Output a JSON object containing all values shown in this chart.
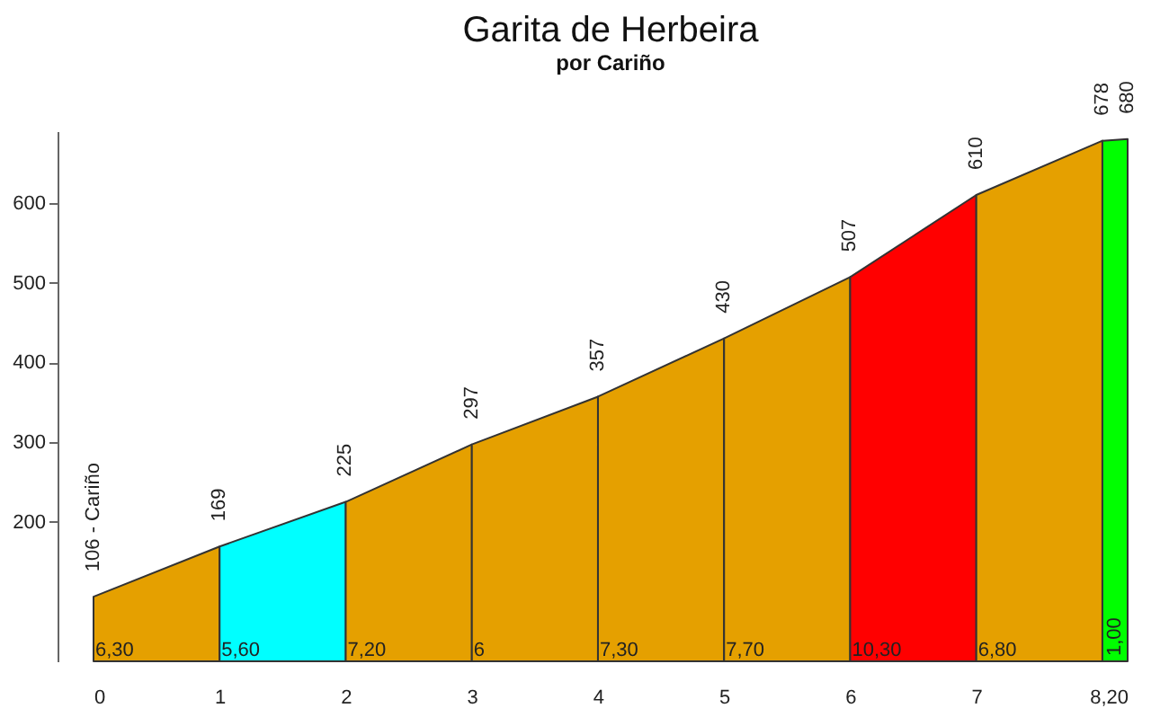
{
  "chart_data": {
    "type": "area",
    "title": "Garita de Herbeira",
    "subtitle": "por Cariño",
    "series": [
      {
        "color": "#e5a000",
        "x": [
          0,
          1
        ],
        "values": [
          106,
          169
        ],
        "value_labels": [
          "106 - Cariño",
          null
        ]
      },
      {
        "color": "#00ffff",
        "x": [
          1,
          2
        ],
        "values": [
          169,
          225
        ],
        "value_labels": [
          "169",
          null
        ]
      },
      {
        "color": "#e5a000",
        "x": [
          2,
          3
        ],
        "values": [
          225,
          297
        ],
        "value_labels": [
          "225",
          null
        ]
      },
      {
        "color": "#e5a000",
        "x": [
          3,
          4
        ],
        "values": [
          297,
          357
        ],
        "value_labels": [
          "297",
          null
        ]
      },
      {
        "color": "#e5a000",
        "x": [
          4,
          5
        ],
        "values": [
          357,
          430
        ],
        "value_labels": [
          "357",
          null
        ]
      },
      {
        "color": "#e5a000",
        "x": [
          5,
          6
        ],
        "values": [
          430,
          507
        ],
        "value_labels": [
          "430",
          null
        ]
      },
      {
        "color": "#ff0000",
        "x": [
          6,
          7
        ],
        "values": [
          507,
          610
        ],
        "value_labels": [
          "507",
          null
        ]
      },
      {
        "color": "#e5a000",
        "x": [
          7,
          8
        ],
        "values": [
          610,
          678
        ],
        "value_labels": [
          "610",
          null
        ]
      },
      {
        "color": "#00ff00",
        "x": [
          8,
          8.2
        ],
        "values": [
          678,
          680
        ],
        "value_labels": [
          "678",
          "680"
        ]
      }
    ],
    "annotations": [
      {
        "text": "6,30",
        "x": 0,
        "y": 25
      },
      {
        "text": "5,60",
        "x": 1,
        "y": 25
      },
      {
        "text": "7,20",
        "x": 2,
        "y": 25
      },
      {
        "text": "6",
        "x": 3,
        "y": 25
      },
      {
        "text": "7,30",
        "x": 4,
        "y": 25
      },
      {
        "text": "7,70",
        "x": 5,
        "y": 25
      },
      {
        "text": "10,30",
        "x": 6,
        "y": 25
      },
      {
        "text": "6,80",
        "x": 7,
        "y": 25
      },
      {
        "text": "1,00",
        "x": 8,
        "y": 25
      }
    ],
    "xlim": [
      0,
      8.2
    ],
    "xticks": [
      0,
      1,
      2,
      3,
      4,
      5,
      6,
      7,
      {
        "value": 8.2,
        "label": "8,20"
      }
    ],
    "ylim": [
      25,
      690
    ],
    "yticks": [
      200,
      300,
      400,
      500,
      600
    ],
    "grid": false
  }
}
